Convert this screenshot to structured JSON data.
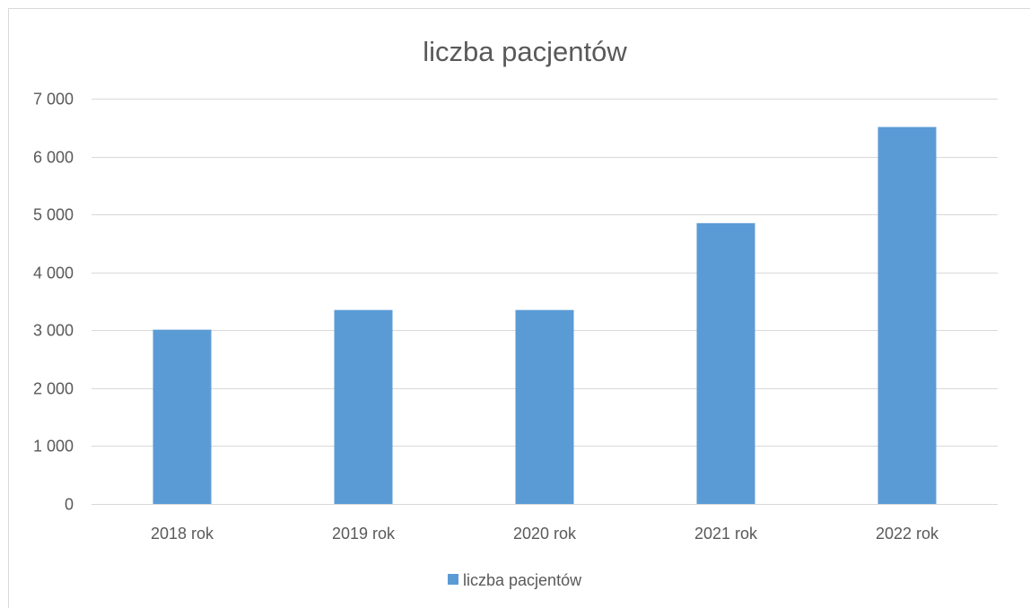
{
  "chart_data": {
    "type": "bar",
    "title": "liczba pacjentów",
    "categories": [
      "2018 rok",
      "2019 rok",
      "2020 rok",
      "2021 rok",
      "2022 rok"
    ],
    "series": [
      {
        "name": "liczba pacjentów",
        "values": [
          3010,
          3350,
          3350,
          4850,
          6510
        ]
      }
    ],
    "ylim": [
      0,
      7000
    ],
    "yticks": [
      0,
      1000,
      2000,
      3000,
      4000,
      5000,
      6000,
      7000
    ],
    "ytick_labels": [
      "0",
      "1 000",
      "2 000",
      "3 000",
      "4 000",
      "5 000",
      "6 000",
      "7 000"
    ],
    "grid": true,
    "legend": "bottom",
    "colors": {
      "bar": "#5b9bd5",
      "grid": "#d9d9d9",
      "text": "#595959",
      "border": "#d9d9d9"
    }
  }
}
